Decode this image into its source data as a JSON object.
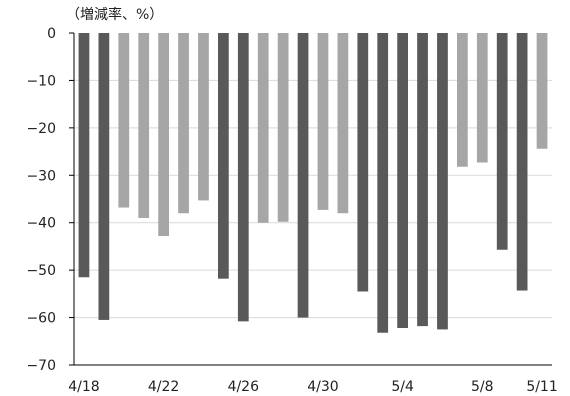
{
  "chart_data": {
    "type": "bar",
    "unit_label": "（増減率、%）",
    "categories": [
      "4/18",
      "4/19",
      "4/20",
      "4/21",
      "4/22",
      "4/23",
      "4/24",
      "4/25",
      "4/26",
      "4/27",
      "4/28",
      "4/29",
      "4/30",
      "5/1",
      "5/2",
      "5/3",
      "5/4",
      "5/5",
      "5/6",
      "5/7",
      "5/8",
      "5/9",
      "5/10",
      "5/11"
    ],
    "tick_labels": [
      "4/18",
      "4/22",
      "4/26",
      "4/30",
      "5/4",
      "5/8",
      "5/11"
    ],
    "values": [
      -51.5,
      -60.5,
      -36.8,
      -39.0,
      -42.8,
      -38.0,
      -35.3,
      -51.8,
      -60.8,
      -40.0,
      -39.8,
      -60.0,
      -37.3,
      -38.0,
      -54.5,
      -63.2,
      -62.2,
      -61.8,
      -62.5,
      -28.2,
      -27.3,
      -45.7,
      -54.3,
      -24.4
    ],
    "dark_flags": [
      true,
      true,
      false,
      false,
      false,
      false,
      false,
      true,
      true,
      false,
      false,
      true,
      false,
      false,
      true,
      true,
      true,
      true,
      true,
      false,
      false,
      true,
      true,
      false
    ],
    "yticks": [
      0,
      -10,
      -20,
      -30,
      -40,
      -50,
      -60,
      -70
    ],
    "ylim": [
      -70,
      0
    ],
    "grid": true,
    "legend": "none",
    "colors": {
      "dark": "#595959",
      "light": "#a6a6a6",
      "grid": "#d9d9d9",
      "axis": "#000000"
    }
  }
}
